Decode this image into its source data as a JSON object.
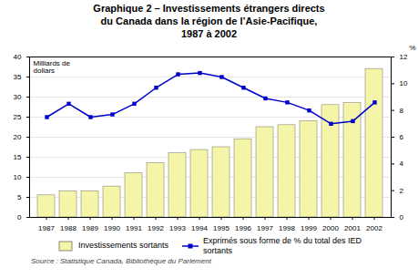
{
  "chart_data": {
    "type": "bar",
    "title": "Graphique 2 – Investissements étrangers directs\ndu Canada dans la région de l’Asie-Pacifique,\n1987 à 2002",
    "ylabel": "Milliards de\ndollars",
    "y2label": "%",
    "caption": "Source : Statistique Canada, Bibliothèque du Parlement",
    "categories": [
      "1987",
      "1988",
      "1989",
      "1990",
      "1991",
      "1992",
      "1993",
      "1994",
      "1995",
      "1996",
      "1997",
      "1998",
      "1999",
      "2000",
      "2001",
      "2002"
    ],
    "series": [
      {
        "name": "Investissements sortants",
        "type": "bar",
        "color": "#f5f5aa",
        "values": [
          5.5,
          6.5,
          6.5,
          7.7,
          11.0,
          13.5,
          16.0,
          16.8,
          17.5,
          19.5,
          22.5,
          23.0,
          24.0,
          28.0,
          28.5,
          37.0
        ]
      },
      {
        "name": "Exprimés sous forme de % du total des IED\nsortants",
        "type": "line",
        "axis": "y2",
        "color": "#0000cc",
        "marker": "square",
        "values": [
          7.5,
          8.5,
          7.5,
          7.7,
          8.5,
          9.7,
          10.7,
          10.8,
          10.5,
          9.7,
          8.9,
          8.6,
          8.0,
          7.0,
          7.2,
          8.6
        ]
      }
    ],
    "ylim": [
      0,
      40
    ],
    "yticks": [
      0,
      5,
      10,
      15,
      20,
      25,
      30,
      35,
      40
    ],
    "y2lim": [
      0,
      12
    ],
    "y2ticks": [
      0,
      2,
      4,
      6,
      8,
      10,
      12
    ],
    "grid": true,
    "legend": "bottom"
  }
}
